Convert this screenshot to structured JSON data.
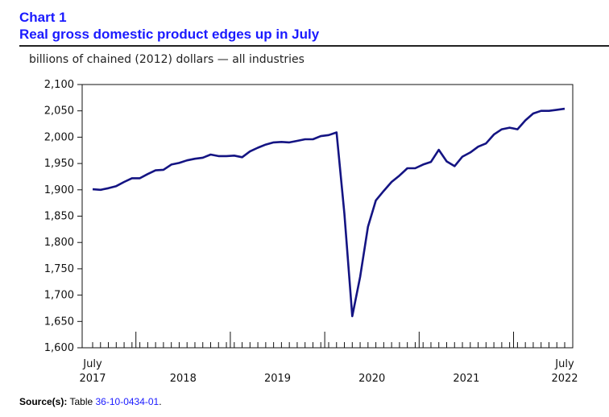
{
  "header": {
    "chart_number": "Chart 1",
    "title": "Real gross domestic product edges up in July",
    "unit_label": "billions of chained (2012) dollars — all industries"
  },
  "source": {
    "label": "Source(s):",
    "prefix": "Table ",
    "table": "36-10-0434-01",
    "suffix": "."
  },
  "chart_data": {
    "type": "line",
    "title": "Real gross domestic product edges up in July",
    "ylabel": "billions of chained (2012) dollars — all industries",
    "xlabel": "",
    "ylim": [
      1600,
      2100
    ],
    "yticks": [
      1600,
      1650,
      1700,
      1750,
      1800,
      1850,
      1900,
      1950,
      2000,
      2050,
      2100
    ],
    "ytick_labels": [
      "1,600",
      "1,650",
      "1,700",
      "1,750",
      "1,800",
      "1,850",
      "1,900",
      "1,950",
      "2,000",
      "2,050",
      "2,100"
    ],
    "x_start": "2017-07",
    "x_end": "2022-07",
    "x_tick_labels": [
      {
        "month_index": 0,
        "lines": [
          "July",
          "2017"
        ]
      },
      {
        "month_index": 6,
        "lines": [
          "2018"
        ]
      },
      {
        "month_index": 18,
        "lines": [
          "2019"
        ]
      },
      {
        "month_index": 30,
        "lines": [
          "2020"
        ]
      },
      {
        "month_index": 42,
        "lines": [
          "2021"
        ]
      },
      {
        "month_index": 60,
        "lines": [
          "July",
          "2022"
        ]
      }
    ],
    "year_boundaries_after_month_index": [
      5,
      17,
      29,
      41,
      53
    ],
    "series": [
      {
        "name": "all industries",
        "color": "#141483",
        "values": [
          1901,
          1900,
          1903,
          1907,
          1915,
          1922,
          1922,
          1930,
          1937,
          1938,
          1948,
          1951,
          1956,
          1959,
          1961,
          1967,
          1964,
          1964,
          1965,
          1962,
          1973,
          1980,
          1986,
          1990,
          1991,
          1990,
          1993,
          1996,
          1996,
          2002,
          2004,
          2009,
          1855,
          1660,
          1735,
          1830,
          1880,
          1898,
          1915,
          1927,
          1941,
          1941,
          1948,
          1953,
          1976,
          1954,
          1945,
          1963,
          1971,
          1982,
          1988,
          2005,
          2015,
          2018,
          2015,
          2032,
          2045,
          2050,
          2050,
          2052,
          2054
        ]
      }
    ]
  }
}
